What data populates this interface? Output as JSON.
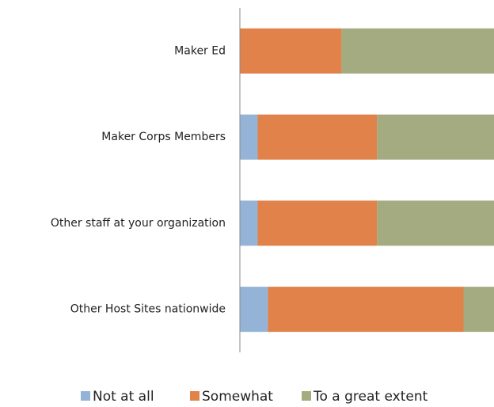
{
  "chart_data": {
    "type": "bar",
    "orientation": "horizontal",
    "stacked": true,
    "categories": [
      "Maker Ed",
      "Maker Corps Members",
      "Other staff at your organization",
      "Other Host Sites nationwide"
    ],
    "series": [
      {
        "name": "Not at all",
        "color": "#95b3d7",
        "values": [
          0,
          7,
          7,
          11
        ]
      },
      {
        "name": "Somewhat",
        "color": "#e0824a",
        "values": [
          40,
          47,
          47,
          77
        ]
      },
      {
        "name": "To a great extent",
        "color": "#a5ab80",
        "values": [
          60,
          46,
          46,
          12
        ]
      }
    ],
    "xlim": [
      0,
      100
    ],
    "legend": "bottom"
  }
}
